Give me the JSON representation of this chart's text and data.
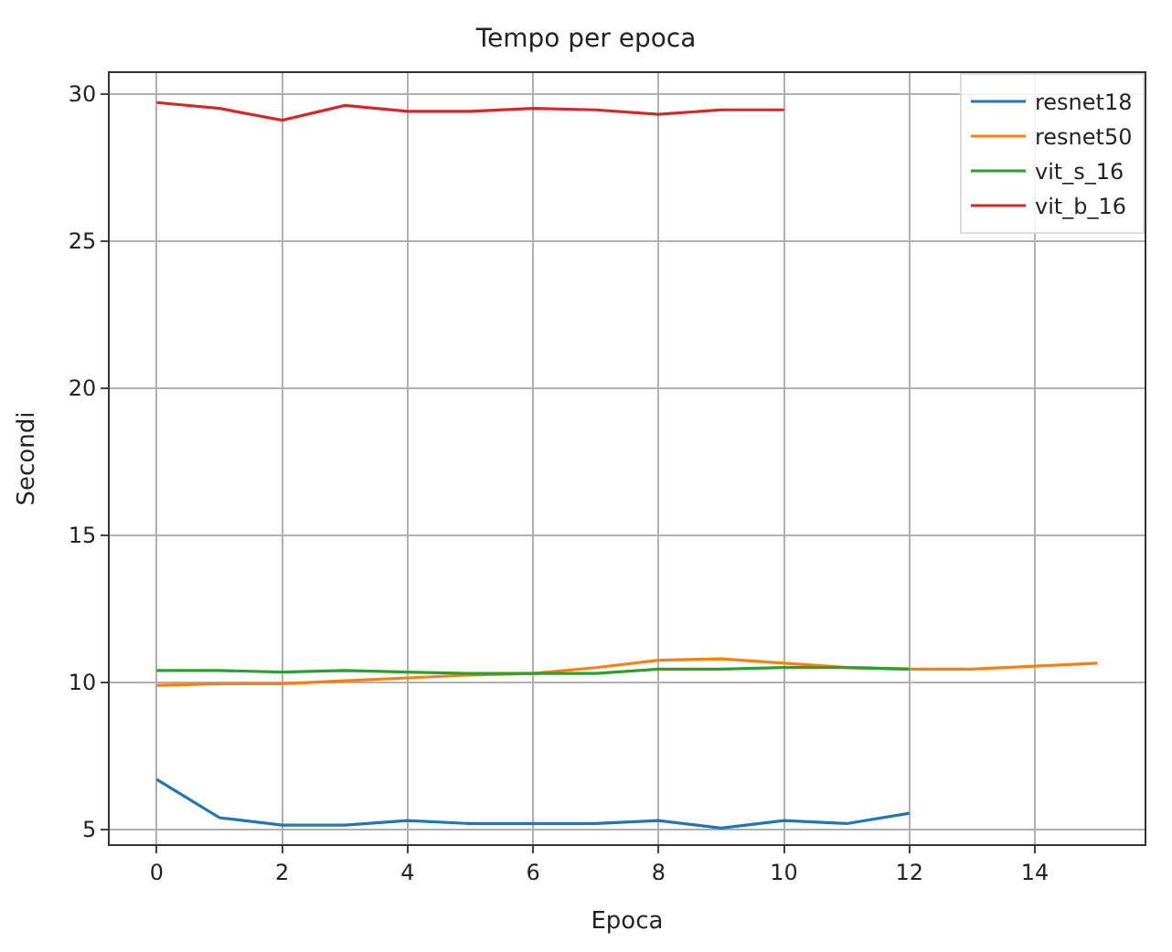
{
  "chart_data": {
    "type": "line",
    "title": "Tempo per epoca",
    "xlabel": "Epoca",
    "ylabel": "Secondi",
    "xlim": [
      -0.75,
      15.75
    ],
    "xticks": [
      0,
      2,
      4,
      6,
      8,
      10,
      12,
      14
    ],
    "ylim": [
      4.5,
      30.7
    ],
    "yticks": [
      5,
      10,
      15,
      20,
      25,
      30
    ],
    "grid": true,
    "legend": "top right",
    "marker": "none",
    "line_style": "solid",
    "series": [
      {
        "name": "resnet18",
        "color": "#1f77b4",
        "x": [
          0,
          1,
          2,
          3,
          4,
          5,
          6,
          7,
          8,
          9,
          10,
          11,
          12
        ],
        "values": [
          6.7,
          5.4,
          5.15,
          5.15,
          5.3,
          5.2,
          5.2,
          5.2,
          5.3,
          5.05,
          5.3,
          5.2,
          5.55
        ]
      },
      {
        "name": "resnet50",
        "color": "#ff7f0e",
        "x": [
          0,
          1,
          2,
          3,
          4,
          5,
          6,
          7,
          8,
          9,
          10,
          11,
          12,
          13,
          14,
          15
        ],
        "values": [
          9.9,
          9.95,
          9.95,
          10.05,
          10.15,
          10.25,
          10.3,
          10.5,
          10.75,
          10.8,
          10.65,
          10.5,
          10.45,
          10.45,
          10.55,
          10.65
        ]
      },
      {
        "name": "vit_s_16",
        "color": "#2ca02c",
        "x": [
          0,
          1,
          2,
          3,
          4,
          5,
          6,
          7,
          8,
          9,
          10,
          11,
          12
        ],
        "values": [
          10.4,
          10.4,
          10.35,
          10.4,
          10.35,
          10.3,
          10.3,
          10.3,
          10.45,
          10.45,
          10.5,
          10.5,
          10.45
        ]
      },
      {
        "name": "vit_b_16",
        "color": "#d62728",
        "x": [
          0,
          1,
          2,
          3,
          4,
          5,
          6,
          7,
          8,
          9,
          10
        ],
        "values": [
          29.7,
          29.5,
          29.1,
          29.6,
          29.4,
          29.4,
          29.5,
          29.45,
          29.3,
          29.45,
          29.45
        ]
      }
    ]
  }
}
